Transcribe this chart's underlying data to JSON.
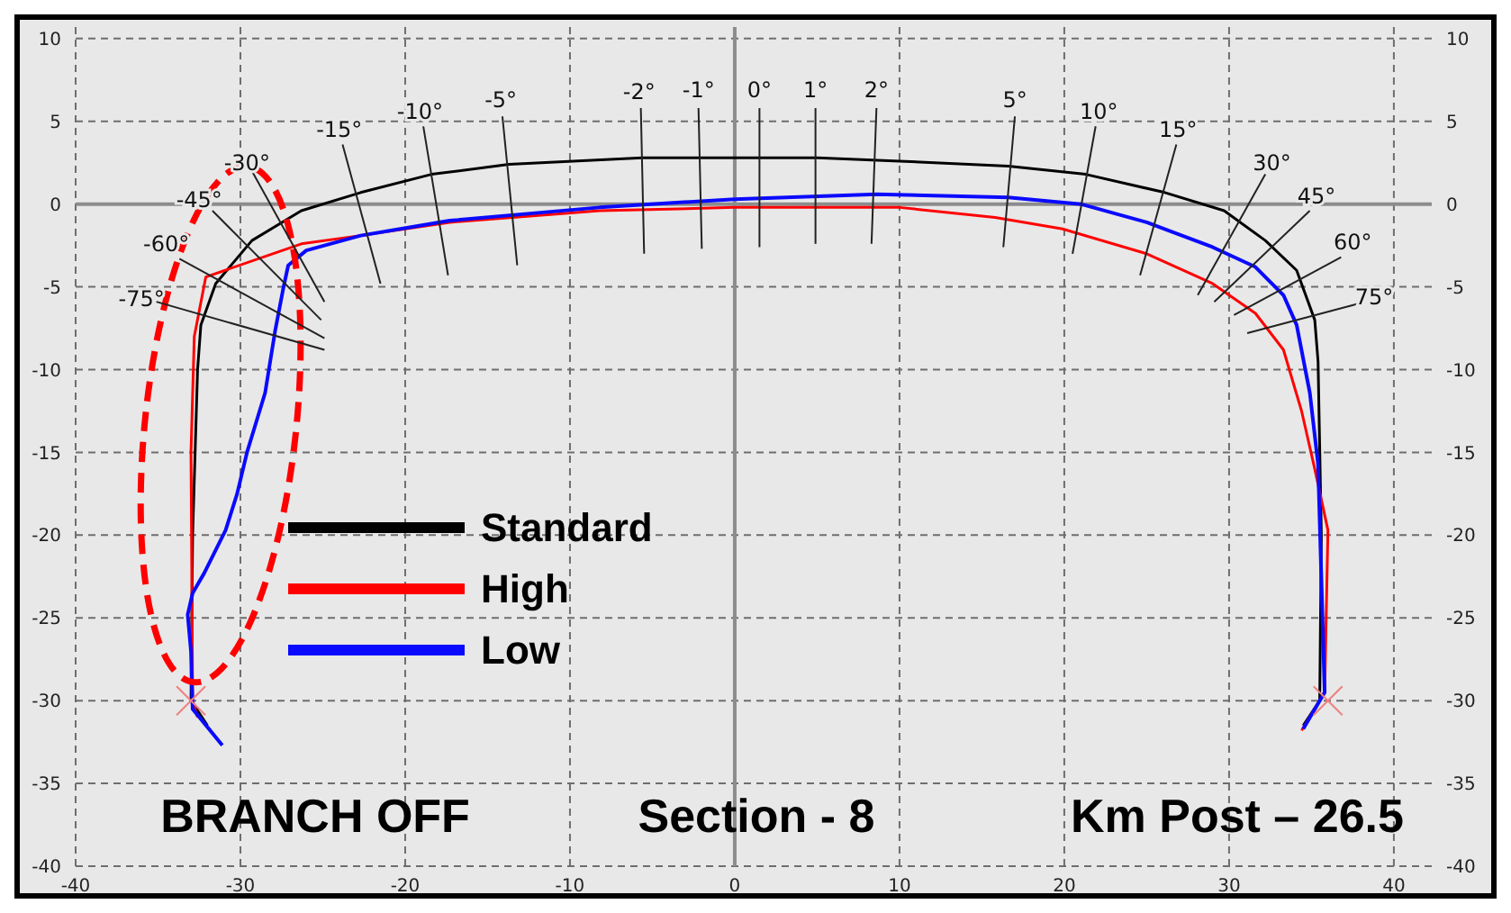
{
  "chart_data": {
    "type": "line",
    "xlim": [
      -40,
      42.3
    ],
    "xticks": [
      -40,
      -30,
      -20,
      -10,
      0,
      10,
      20,
      30,
      40
    ],
    "ylim": [
      -40,
      10.7
    ],
    "yticks": [
      -40,
      -35,
      -30,
      -25,
      -20,
      -15,
      -10,
      -5,
      0,
      5,
      10
    ],
    "y2lim": [
      -40,
      10.7
    ],
    "y2ticks": [
      -40,
      -35,
      -30,
      -25,
      -20,
      -15,
      -10,
      -5,
      0,
      5,
      10
    ],
    "grid": true,
    "legend": "left",
    "line_style": "solid",
    "series": [
      {
        "name": "Standard",
        "color": "#000000",
        "x": [
          -32.0,
          -33.0,
          -32.9,
          -32.6,
          -32.4,
          -31.5,
          -29.3,
          -26.3,
          -22.7,
          -18.4,
          -13.7,
          -5.6,
          0,
          5,
          10,
          16.6,
          21.3,
          26.1,
          29.7,
          32.2,
          34.1,
          35.2,
          35.4,
          35.6,
          35.5,
          34.5
        ],
        "values": [
          -31.5,
          -30,
          -20,
          -10,
          -7.3,
          -4.8,
          -2.2,
          -0.4,
          0.7,
          1.8,
          2.4,
          2.8,
          2.8,
          2.8,
          2.6,
          2.3,
          1.8,
          0.7,
          -0.4,
          -2.2,
          -4,
          -7,
          -9.5,
          -20,
          -30,
          -31.5
        ]
      },
      {
        "name": "High",
        "color": "#ff0000",
        "x": [
          -32.6,
          -32.9,
          -33.0,
          -32.8,
          -32.1,
          -26.3,
          -22.7,
          -17.3,
          -8.2,
          0,
          10,
          15.8,
          19.9,
          25,
          29,
          31.6,
          33.3,
          34.4,
          35.2,
          36.0,
          35.8,
          34.4
        ],
        "values": [
          -31,
          -30,
          -15,
          -8,
          -4.4,
          -2.4,
          -1.9,
          -1.1,
          -0.4,
          -0.2,
          -0.2,
          -0.8,
          -1.5,
          -3,
          -4.8,
          -6.6,
          -8.8,
          -12.5,
          -16,
          -19.7,
          -29.5,
          -31.8
        ]
      },
      {
        "name": "Low",
        "color": "#0a0aff",
        "x": [
          -31.1,
          -32.9,
          -33.0,
          -33.2,
          -32.9,
          -32.2,
          -30.9,
          -30.2,
          -29.6,
          -28.5,
          -27.9,
          -27.4,
          -27.1,
          -26.0,
          -22.7,
          -17.3,
          -8.2,
          0,
          8.6,
          16.6,
          21,
          25,
          29,
          31.6,
          33.3,
          34.1,
          34.9,
          35.4,
          35.8,
          34.5
        ],
        "values": [
          -32.7,
          -30.5,
          -27,
          -24.8,
          -23.5,
          -22.3,
          -19.7,
          -17.5,
          -15,
          -11.4,
          -7.7,
          -5.1,
          -3.7,
          -2.8,
          -1.9,
          -1.0,
          -0.2,
          0.3,
          0.6,
          0.4,
          0,
          -1.1,
          -2.6,
          -3.8,
          -5.5,
          -7.3,
          -11.4,
          -15.7,
          -29.5,
          -31.7
        ]
      },
      {
        "type": "scatter",
        "marker": "cross",
        "color": "#f08080",
        "x": [
          -33,
          36
        ],
        "values": [
          -30,
          -30
        ]
      }
    ],
    "annotations": [
      "-75°",
      "-60°",
      "-45°",
      "-30°",
      "-15°",
      "-10°",
      "-5°",
      "-2°",
      "-1°",
      "0°",
      "1°",
      "2°",
      "5°",
      "10°",
      "15°",
      "30°",
      "45°",
      "60°",
      "75°",
      "BRANCH OFF",
      "Section - 8",
      "Km Post – 26.5"
    ]
  }
}
